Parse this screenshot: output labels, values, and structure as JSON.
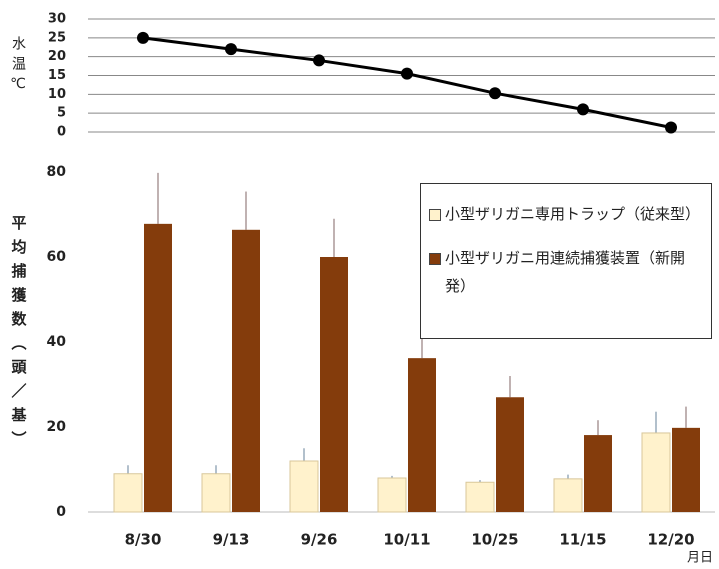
{
  "chart_data": [
    {
      "type": "line",
      "ylabel": "水温℃",
      "values": [
        25,
        22,
        19,
        15.5,
        10.3,
        6,
        1.2
      ],
      "color": "#000000",
      "ylim": [
        0,
        30
      ],
      "yticks": [
        0,
        5,
        10,
        15,
        20,
        25,
        30
      ],
      "grid": true
    },
    {
      "type": "bar",
      "ylabel": "平均捕獲数（頭／基）",
      "xlabel": "月日",
      "categories": [
        "8/30",
        "9/13",
        "9/26",
        "10/11",
        "10/25",
        "11/15",
        "12/20"
      ],
      "series": [
        {
          "name": "小型ザリガニ専用トラップ（従来型）",
          "color": "#fff2cc",
          "values": [
            9,
            9,
            12,
            8,
            7,
            7.8,
            18.6
          ],
          "errors": [
            2,
            2,
            3,
            0.5,
            0.5,
            1,
            5
          ]
        },
        {
          "name": "小型ザリガニ用連続捕獲装置（新開発）",
          "color": "#843c0c",
          "values": [
            67.8,
            66.4,
            60,
            36.2,
            27,
            18.1,
            19.8
          ],
          "errors": [
            12,
            9,
            9,
            5.5,
            5,
            3.5,
            5
          ]
        }
      ],
      "ylim": [
        0,
        80
      ],
      "yticks": [
        0,
        20,
        40,
        60,
        80
      ],
      "grid": false,
      "legend": "upper right"
    }
  ]
}
